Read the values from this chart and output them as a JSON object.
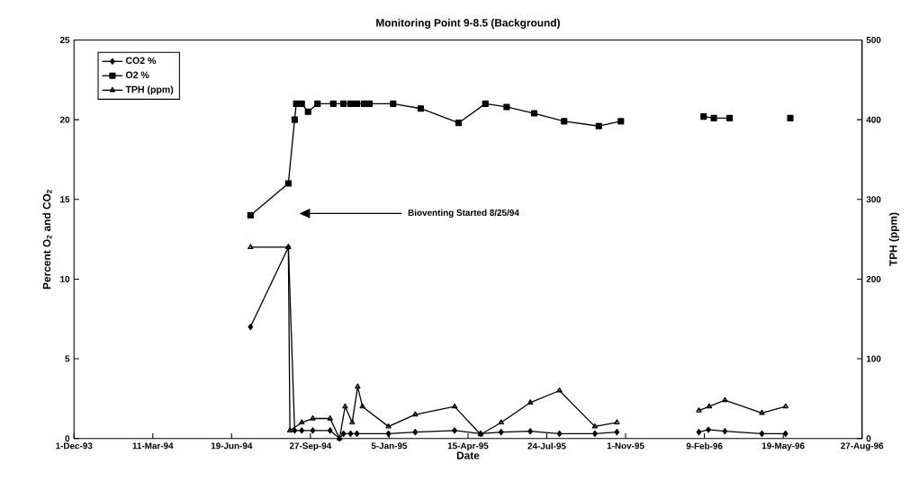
{
  "chart_data": {
    "type": "line",
    "title": "Monitoring Point 9-8.5  (Background)",
    "xlabel": "Date",
    "ylabel": "Percent O$_{2}$ and CO$_{2}$",
    "y2label": "TPH (ppm)",
    "xlim": [
      "1993-12-01",
      "1996-08-27"
    ],
    "xticks": [
      {
        "value": "1993-12-01",
        "label": "1-Dec-93"
      },
      {
        "value": "1994-03-11",
        "label": "11-Mar-94"
      },
      {
        "value": "1994-06-19",
        "label": "19-Jun-94"
      },
      {
        "value": "1994-09-27",
        "label": "27-Sep-94"
      },
      {
        "value": "1995-01-05",
        "label": "5-Jan-95"
      },
      {
        "value": "1995-04-15",
        "label": "15-Apr-95"
      },
      {
        "value": "1995-07-24",
        "label": "24-Jul-95"
      },
      {
        "value": "1995-11-01",
        "label": "1-Nov-95"
      },
      {
        "value": "1996-02-09",
        "label": "9-Feb-96"
      },
      {
        "value": "1996-05-19",
        "label": "19-May-96"
      },
      {
        "value": "1996-08-27",
        "label": "27-Aug-96"
      }
    ],
    "ylim": [
      0,
      25
    ],
    "yticks": [
      0,
      5,
      10,
      15,
      20,
      25
    ],
    "y2lim": [
      0,
      500
    ],
    "y2ticks": [
      0,
      100,
      200,
      300,
      400,
      500
    ],
    "legend": "top left",
    "annotations": [
      "Bioventing Started 8/25/94"
    ],
    "series": [
      {
        "name": "CO2 %",
        "color": "#000000",
        "marker": "diamond",
        "x": [
          "1994-07-13",
          "1994-08-30",
          "1994-09-07",
          "1994-09-16",
          "1994-09-30",
          "1994-10-22",
          "1994-11-03",
          "1994-11-08",
          "1994-11-17",
          "1994-11-25",
          "1995-01-04",
          "1995-02-07",
          "1995-03-29",
          "1995-05-01",
          "1995-05-27",
          "1995-07-03",
          "1995-08-09",
          "1995-09-23",
          "1995-10-21",
          "1995-12-15",
          "1996-02-02",
          "1996-02-14",
          "1996-03-06",
          "1996-04-22",
          "1996-05-22"
        ],
        "values": [
          7,
          12,
          0.5,
          0.5,
          0.5,
          0.5,
          0,
          0.3,
          0.3,
          0.3,
          0.3,
          0.4,
          0.5,
          0.3,
          0.4,
          0.45,
          0.3,
          0.3,
          0.4,
          null,
          0.4,
          0.55,
          0.45,
          0.3,
          0.3
        ]
      },
      {
        "name": "O2 %",
        "color": "#000000",
        "marker": "square",
        "x": [
          "1994-07-13",
          "1994-08-30",
          "1994-09-07",
          "1994-09-09",
          "1994-09-16",
          "1994-09-24",
          "1994-10-06",
          "1994-10-26",
          "1994-11-08",
          "1994-11-17",
          "1994-11-25",
          "1994-12-04",
          "1994-12-11",
          "1995-01-10",
          "1995-02-14",
          "1995-04-03",
          "1995-05-07",
          "1995-06-03",
          "1995-07-08",
          "1995-08-15",
          "1995-09-28",
          "1995-10-26",
          "1995-12-15",
          "1996-02-08",
          "1996-02-21",
          "1996-03-12",
          "1996-04-20",
          "1996-05-28"
        ],
        "values": [
          14,
          16,
          20,
          21,
          21,
          20.5,
          21,
          21,
          21,
          21,
          21,
          21,
          21,
          21,
          20.7,
          19.8,
          21,
          20.8,
          20.4,
          19.9,
          19.6,
          19.9,
          null,
          20.2,
          20.1,
          20.1,
          null,
          20.1
        ]
      },
      {
        "name": "TPH (ppm)",
        "color": "#000000",
        "marker": "triangle",
        "axis": "y2",
        "x": [
          "1994-07-13",
          "1994-08-30",
          "1994-09-01",
          "1994-09-16",
          "1994-09-30",
          "1994-10-22",
          "1994-11-03",
          "1994-11-10",
          "1994-11-19",
          "1994-11-26",
          "1994-12-02",
          "1995-01-04",
          "1995-02-07",
          "1995-03-29",
          "1995-05-01",
          "1995-05-27",
          "1995-07-03",
          "1995-08-09",
          "1995-09-23",
          "1995-10-21",
          "1995-12-15",
          "1996-02-02",
          "1996-02-15",
          "1996-03-06",
          "1996-04-22",
          "1996-05-22"
        ],
        "values": [
          240,
          240,
          10,
          20,
          25,
          25,
          0,
          40,
          20,
          65,
          40,
          15,
          30,
          40,
          5,
          20,
          45,
          60,
          15,
          20,
          null,
          35,
          40,
          48,
          32,
          40
        ]
      }
    ]
  }
}
